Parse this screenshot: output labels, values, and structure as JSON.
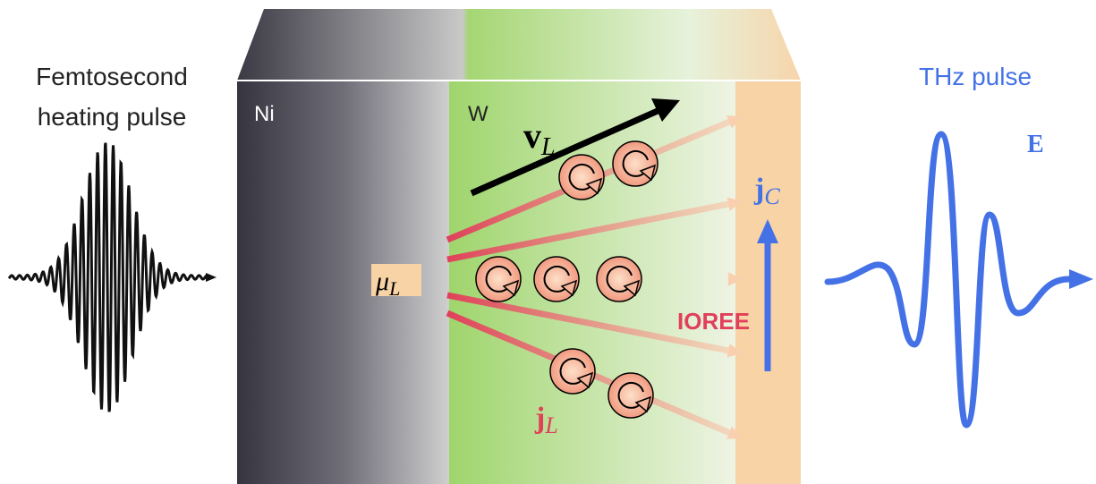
{
  "left_label": [
    "Femtosecond",
    "heating pulse"
  ],
  "layers": {
    "ni": "Ni",
    "w": "W"
  },
  "symbols": {
    "v_L": {
      "main": "v",
      "sub": "L"
    },
    "mu_L": {
      "main": "μ",
      "sub": "L"
    },
    "j_C": {
      "main": "j",
      "sub": "C"
    },
    "j_L": {
      "main": "j",
      "sub": "L"
    },
    "field": "E"
  },
  "effect": "IOREE",
  "right_label": "THz pulse"
}
